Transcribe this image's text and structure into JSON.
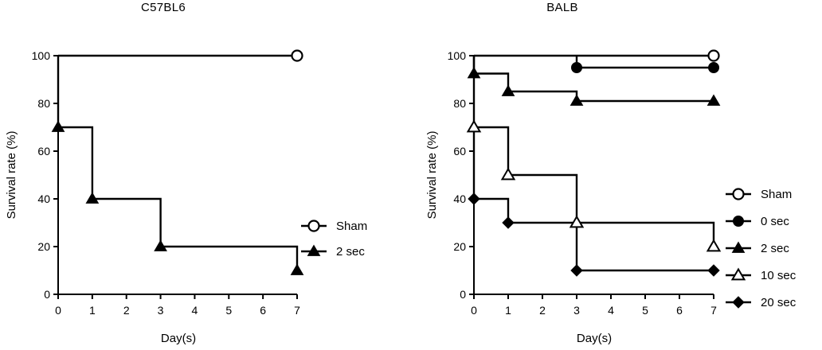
{
  "chart_data": [
    {
      "type": "line",
      "subtype": "step",
      "title": "C57BL6",
      "xlabel": "Day(s)",
      "ylabel": "Survival rate (%)",
      "xlim": [
        0,
        7
      ],
      "ylim": [
        0,
        100
      ],
      "xticks": [
        "0",
        "1",
        "2",
        "3",
        "4",
        "5",
        "6",
        "7"
      ],
      "yticks": [
        "0",
        "20",
        "40",
        "60",
        "80",
        "100"
      ],
      "legend_position": "right",
      "series": [
        {
          "name": "Sham",
          "marker": "open-circle",
          "steps": [
            [
              0,
              100
            ],
            [
              7,
              100
            ]
          ],
          "marker_points": [
            [
              7,
              100
            ]
          ]
        },
        {
          "name": "2 sec",
          "marker": "filled-triangle",
          "steps": [
            [
              0,
              100
            ],
            [
              0,
              70
            ],
            [
              1,
              70
            ],
            [
              1,
              40
            ],
            [
              3,
              40
            ],
            [
              3,
              20
            ],
            [
              7,
              20
            ],
            [
              7,
              10
            ]
          ],
          "marker_points": [
            [
              0,
              70
            ],
            [
              1,
              40
            ],
            [
              3,
              20
            ],
            [
              7,
              10
            ]
          ]
        }
      ]
    },
    {
      "type": "line",
      "subtype": "step",
      "title": "BALB",
      "xlabel": "Day(s)",
      "ylabel": "Survival rate (%)",
      "xlim": [
        0,
        7
      ],
      "ylim": [
        0,
        100
      ],
      "xticks": [
        "0",
        "1",
        "2",
        "3",
        "4",
        "5",
        "6",
        "7"
      ],
      "yticks": [
        "0",
        "20",
        "40",
        "60",
        "80",
        "100"
      ],
      "legend_position": "right",
      "series": [
        {
          "name": "Sham",
          "marker": "open-circle",
          "steps": [
            [
              0,
              100
            ],
            [
              7,
              100
            ]
          ],
          "marker_points": [
            [
              7,
              100
            ]
          ]
        },
        {
          "name": "0 sec",
          "marker": "filled-circle",
          "steps": [
            [
              3,
              100
            ],
            [
              3,
              95
            ],
            [
              7,
              95
            ]
          ],
          "marker_points": [
            [
              3,
              95
            ],
            [
              7,
              95
            ]
          ]
        },
        {
          "name": "2 sec",
          "marker": "filled-triangle",
          "steps": [
            [
              0,
              100
            ],
            [
              0,
              92.5
            ],
            [
              1,
              92.5
            ],
            [
              1,
              85
            ],
            [
              3,
              85
            ],
            [
              3,
              81
            ],
            [
              7,
              81
            ]
          ],
          "marker_points": [
            [
              0,
              92.5
            ],
            [
              1,
              85
            ],
            [
              3,
              81
            ],
            [
              7,
              81
            ]
          ]
        },
        {
          "name": "10 sec",
          "marker": "open-triangle",
          "steps": [
            [
              0,
              100
            ],
            [
              0,
              70
            ],
            [
              1,
              70
            ],
            [
              1,
              50
            ],
            [
              3,
              50
            ],
            [
              3,
              30
            ],
            [
              7,
              30
            ],
            [
              7,
              20
            ]
          ],
          "marker_points": [
            [
              0,
              70
            ],
            [
              1,
              50
            ],
            [
              3,
              30
            ],
            [
              7,
              20
            ]
          ]
        },
        {
          "name": "20 sec",
          "marker": "filled-diamond",
          "steps": [
            [
              0,
              70
            ],
            [
              0,
              40
            ],
            [
              1,
              40
            ],
            [
              1,
              30
            ],
            [
              3,
              30
            ],
            [
              3,
              10
            ],
            [
              7,
              10
            ]
          ],
          "marker_points": [
            [
              0,
              40
            ],
            [
              1,
              30
            ],
            [
              3,
              10
            ],
            [
              7,
              10
            ]
          ]
        }
      ]
    }
  ]
}
